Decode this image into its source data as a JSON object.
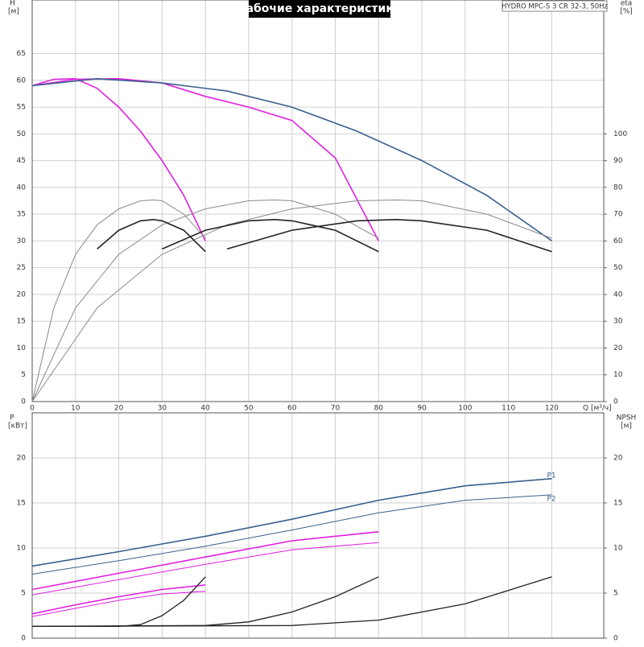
{
  "chart_data": [
    {
      "type": "line",
      "title": "Рабочие характеристики",
      "subtitle": "HYDRO MPC-S 3 CR 32-3, 50Hz",
      "y_label": "H",
      "y_unit": "[м]",
      "y2_label": "eta",
      "y2_unit": "[%]",
      "x_label": "Q [м³/ч]",
      "xlim": [
        0,
        132
      ],
      "xticks": [
        0,
        10,
        20,
        30,
        40,
        50,
        60,
        70,
        80,
        90,
        100,
        110,
        120
      ],
      "ylim": [
        0,
        75
      ],
      "yticks": [
        0,
        5,
        10,
        15,
        20,
        25,
        30,
        35,
        40,
        45,
        50,
        55,
        60,
        65
      ],
      "y2lim": [
        0,
        150
      ],
      "y2ticks": [
        0,
        10,
        20,
        30,
        40,
        50,
        60,
        70,
        80,
        90,
        100
      ],
      "grid": true,
      "series": [
        {
          "color": "#e020e0",
          "width": 1.6,
          "x": [
            0,
            5,
            10,
            15,
            20,
            25,
            30,
            35,
            40
          ],
          "values": [
            59,
            60.2,
            60.3,
            58.5,
            55,
            50.5,
            45,
            38.5,
            30
          ]
        },
        {
          "color": "#e020e0",
          "width": 1.6,
          "x": [
            0,
            10,
            20,
            30,
            40,
            50,
            60,
            70,
            80
          ],
          "values": [
            59,
            60.2,
            60.3,
            59.5,
            57,
            55,
            52.5,
            45.5,
            30
          ]
        },
        {
          "color": "#3a5f8f",
          "width": 1.6,
          "x": [
            0,
            15,
            30,
            45,
            60,
            75,
            90,
            105,
            120
          ],
          "values": [
            59,
            60.3,
            59.5,
            58,
            55,
            50.5,
            45,
            38.5,
            30
          ]
        },
        {
          "color": "#888888",
          "width": 1,
          "axis": "y2",
          "x": [
            0,
            5,
            10,
            15,
            20,
            25,
            28,
            30,
            35,
            40
          ],
          "values": [
            0,
            35,
            55,
            66,
            72,
            75,
            75.3,
            75,
            70,
            61
          ]
        },
        {
          "color": "#888888",
          "width": 1,
          "axis": "y2",
          "x": [
            0,
            10,
            20,
            30,
            40,
            50,
            56,
            60,
            70,
            80
          ],
          "values": [
            0,
            35,
            55,
            66,
            72,
            75,
            75.3,
            75,
            70,
            61
          ]
        },
        {
          "color": "#888888",
          "width": 1,
          "axis": "y2",
          "x": [
            0,
            15,
            30,
            45,
            60,
            75,
            84,
            90,
            105,
            120
          ],
          "values": [
            0,
            35,
            55,
            66,
            72,
            75,
            75.3,
            75,
            70,
            61
          ]
        },
        {
          "color": "#222222",
          "width": 1.6,
          "axis": "y2",
          "x": [
            15,
            20,
            25,
            28,
            30,
            35,
            40
          ],
          "values": [
            57,
            64,
            67.5,
            68,
            67.5,
            64,
            56
          ]
        },
        {
          "color": "#222222",
          "width": 1.6,
          "axis": "y2",
          "x": [
            30,
            40,
            50,
            56,
            60,
            70,
            80
          ],
          "values": [
            57,
            64,
            67.5,
            68,
            67.5,
            64,
            56
          ]
        },
        {
          "color": "#222222",
          "width": 1.6,
          "axis": "y2",
          "x": [
            45,
            60,
            75,
            84,
            90,
            105,
            120
          ],
          "values": [
            57,
            64,
            67.5,
            68,
            67.5,
            64,
            56
          ]
        }
      ]
    },
    {
      "type": "line",
      "y_label": "P",
      "y_unit": "[кВт]",
      "y2_label": "NPSH",
      "y2_unit": "[м]",
      "xlim": [
        0,
        132
      ],
      "xticks": [
        0,
        10,
        20,
        30,
        40,
        50,
        60,
        70,
        80,
        90,
        100,
        110,
        120
      ],
      "ylim": [
        0,
        25
      ],
      "yticks": [
        0,
        5,
        10,
        15,
        20
      ],
      "y2lim": [
        0,
        25
      ],
      "y2ticks": [
        0,
        5,
        10,
        15,
        20
      ],
      "grid": true,
      "series": [
        {
          "name": "P1",
          "color": "#3a5f8f",
          "width": 1.6,
          "x": [
            0,
            20,
            40,
            60,
            80,
            100,
            120
          ],
          "values": [
            8,
            9.6,
            11.3,
            13.2,
            15.3,
            16.9,
            17.7
          ]
        },
        {
          "name": "P2",
          "color": "#3a5f8f",
          "width": 1,
          "x": [
            0,
            20,
            40,
            60,
            80,
            100,
            120
          ],
          "values": [
            7.1,
            8.6,
            10.2,
            12,
            13.9,
            15.3,
            15.9
          ]
        },
        {
          "color": "#e020e0",
          "width": 1.6,
          "x": [
            0,
            20,
            40,
            60,
            80
          ],
          "values": [
            5.4,
            7.2,
            9,
            10.8,
            11.8
          ]
        },
        {
          "color": "#e020e0",
          "width": 1,
          "x": [
            0,
            20,
            40,
            60,
            80
          ],
          "values": [
            4.8,
            6.5,
            8.2,
            9.8,
            10.6
          ]
        },
        {
          "color": "#e020e0",
          "width": 1.6,
          "x": [
            0,
            10,
            20,
            30,
            40
          ],
          "values": [
            2.7,
            3.7,
            4.6,
            5.4,
            5.9
          ]
        },
        {
          "color": "#e020e0",
          "width": 1,
          "x": [
            0,
            10,
            20,
            30,
            40
          ],
          "values": [
            2.4,
            3.3,
            4.2,
            4.9,
            5.2
          ]
        },
        {
          "color": "#222222",
          "width": 1.3,
          "axis": "y2",
          "x": [
            0,
            20,
            25,
            30,
            35,
            40
          ],
          "values": [
            1.3,
            1.3,
            1.5,
            2.5,
            4.2,
            6.8
          ]
        },
        {
          "color": "#222222",
          "width": 1.3,
          "axis": "y2",
          "x": [
            0,
            40,
            50,
            60,
            70,
            80
          ],
          "values": [
            1.3,
            1.4,
            1.8,
            2.9,
            4.6,
            6.8
          ]
        },
        {
          "color": "#222222",
          "width": 1.3,
          "axis": "y2",
          "x": [
            0,
            60,
            80,
            100,
            120
          ],
          "values": [
            1.3,
            1.4,
            2,
            3.8,
            6.8
          ]
        }
      ]
    }
  ]
}
